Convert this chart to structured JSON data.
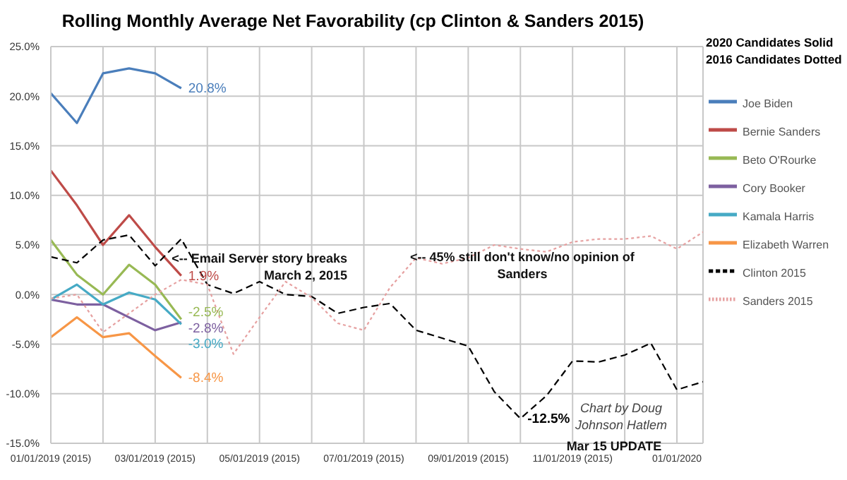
{
  "chart_data": {
    "type": "line",
    "title": "Rolling Monthly Average Net Favorability (cp Clinton & Sanders 2015)",
    "legend_title": "2020 Candidates Solid\n2016 Candidates Dotted",
    "legend": "right",
    "grid": true,
    "marker": "none",
    "categories": [
      "01/01/2019 (2015)",
      null,
      null,
      null,
      "03/01/2019 (2015)",
      null,
      null,
      null,
      "05/01/2019 (2015)",
      null,
      null,
      null,
      "07/01/2019 (2015)",
      null,
      null,
      null,
      "09/01/2019 (2015)",
      null,
      null,
      null,
      "11/01/2019 (2015)",
      null,
      null,
      null,
      "01/01/2020",
      null
    ],
    "ylim": [
      -15,
      25
    ],
    "yticks": [
      {
        "value": -15,
        "label": "-15.0%"
      },
      {
        "value": -10,
        "label": "-10.0%"
      },
      {
        "value": -5,
        "label": "-5.0%"
      },
      {
        "value": 0,
        "label": "0.0%"
      },
      {
        "value": 5,
        "label": "5.0%"
      },
      {
        "value": 10,
        "label": "10.0%"
      },
      {
        "value": 15,
        "label": "15.0%"
      },
      {
        "value": 20,
        "label": "20.0%"
      },
      {
        "value": 25,
        "label": "25.0%"
      }
    ],
    "series": [
      {
        "name": "Joe Biden",
        "color": "#4a7ebb",
        "line_style": "solid",
        "values": [
          20.3,
          17.3,
          22.3,
          22.8,
          22.3,
          20.8,
          null,
          null,
          null,
          null,
          null,
          null,
          null,
          null,
          null,
          null,
          null,
          null,
          null,
          null,
          null,
          null,
          null,
          null,
          null,
          null
        ],
        "value_labels": [
          null,
          null,
          null,
          null,
          null,
          "20.8%",
          null,
          null,
          null,
          null,
          null,
          null,
          null,
          null,
          null,
          null,
          null,
          null,
          null,
          null,
          null,
          null,
          null,
          null,
          null,
          null
        ]
      },
      {
        "name": "Bernie Sanders",
        "color": "#be4b48",
        "line_style": "solid",
        "values": [
          12.5,
          9,
          5,
          8,
          4.8,
          1.9,
          null,
          null,
          null,
          null,
          null,
          null,
          null,
          null,
          null,
          null,
          null,
          null,
          null,
          null,
          null,
          null,
          null,
          null,
          null,
          null
        ],
        "value_labels": [
          null,
          null,
          null,
          null,
          null,
          "1.9%",
          null,
          null,
          null,
          null,
          null,
          null,
          null,
          null,
          null,
          null,
          null,
          null,
          null,
          null,
          null,
          null,
          null,
          null,
          null,
          null
        ]
      },
      {
        "name": "Beto O'Rourke",
        "color": "#98b954",
        "line_style": "solid",
        "values": [
          5.5,
          2,
          0,
          3,
          1,
          -2.5,
          null,
          null,
          null,
          null,
          null,
          null,
          null,
          null,
          null,
          null,
          null,
          null,
          null,
          null,
          null,
          null,
          null,
          null,
          null,
          null
        ],
        "value_labels": [
          null,
          null,
          null,
          null,
          null,
          "-2.5%",
          null,
          null,
          null,
          null,
          null,
          null,
          null,
          null,
          null,
          null,
          null,
          null,
          null,
          null,
          null,
          null,
          null,
          null,
          null,
          null
        ]
      },
      {
        "name": "Cory Booker",
        "color": "#7d60a0",
        "line_style": "solid",
        "values": [
          -0.5,
          -1,
          -1,
          -2.3,
          -3.6,
          -2.8,
          null,
          null,
          null,
          null,
          null,
          null,
          null,
          null,
          null,
          null,
          null,
          null,
          null,
          null,
          null,
          null,
          null,
          null,
          null,
          null
        ],
        "value_labels": [
          null,
          null,
          null,
          null,
          null,
          "-2.8%",
          null,
          null,
          null,
          null,
          null,
          null,
          null,
          null,
          null,
          null,
          null,
          null,
          null,
          null,
          null,
          null,
          null,
          null,
          null,
          null
        ]
      },
      {
        "name": "Kamala Harris",
        "color": "#46aac5",
        "line_style": "solid",
        "values": [
          -0.5,
          1,
          -1,
          0.2,
          -0.5,
          -3.0,
          null,
          null,
          null,
          null,
          null,
          null,
          null,
          null,
          null,
          null,
          null,
          null,
          null,
          null,
          null,
          null,
          null,
          null,
          null,
          null
        ],
        "value_labels": [
          null,
          null,
          null,
          null,
          null,
          "-3.0%",
          null,
          null,
          null,
          null,
          null,
          null,
          null,
          null,
          null,
          null,
          null,
          null,
          null,
          null,
          null,
          null,
          null,
          null,
          null,
          null
        ]
      },
      {
        "name": "Elizabeth Warren",
        "color": "#f79646",
        "line_style": "solid",
        "values": [
          -4.3,
          -2.3,
          -4.3,
          -3.9,
          -6.2,
          -8.4,
          null,
          null,
          null,
          null,
          null,
          null,
          null,
          null,
          null,
          null,
          null,
          null,
          null,
          null,
          null,
          null,
          null,
          null,
          null,
          null
        ],
        "value_labels": [
          null,
          null,
          null,
          null,
          null,
          "-8.4%",
          null,
          null,
          null,
          null,
          null,
          null,
          null,
          null,
          null,
          null,
          null,
          null,
          null,
          null,
          null,
          null,
          null,
          null,
          null,
          null
        ]
      },
      {
        "name": "Clinton 2015",
        "color": "#000000",
        "line_style": "dashed",
        "values": [
          3.8,
          3.2,
          5.5,
          6.0,
          2.9,
          5.6,
          1.0,
          0.1,
          1.3,
          0.0,
          -0.2,
          -1.9,
          -1.3,
          -0.9,
          -3.6,
          -4.4,
          -5.2,
          -9.8,
          -12.5,
          -10.2,
          -6.7,
          -6.8,
          -6.1,
          -4.9,
          -9.6,
          -8.8
        ],
        "value_labels": [
          null,
          null,
          null,
          null,
          null,
          null,
          null,
          null,
          null,
          null,
          null,
          null,
          null,
          null,
          null,
          null,
          null,
          null,
          "-12.5%",
          null,
          null,
          null,
          null,
          null,
          null,
          null
        ]
      },
      {
        "name": "Sanders 2015",
        "color": "#e6a0a0",
        "line_style": "dotted",
        "values": [
          -0.4,
          0,
          -3.8,
          -1.9,
          0,
          1.5,
          1.0,
          -6.0,
          -2.3,
          1.3,
          -0.3,
          -2.9,
          -3.6,
          0.7,
          3.7,
          3.1,
          3.7,
          5.0,
          4.6,
          4.3,
          5.3,
          5.6,
          5.6,
          5.9,
          4.6,
          6.3
        ]
      }
    ],
    "annotations": [
      "<-- Email Server story breaks March 2, 2015",
      "<-- 45% still don't know/no opinion of Sanders",
      "Chart by Doug Johnson Hatlem",
      "Mar 15 UPDATE"
    ]
  }
}
